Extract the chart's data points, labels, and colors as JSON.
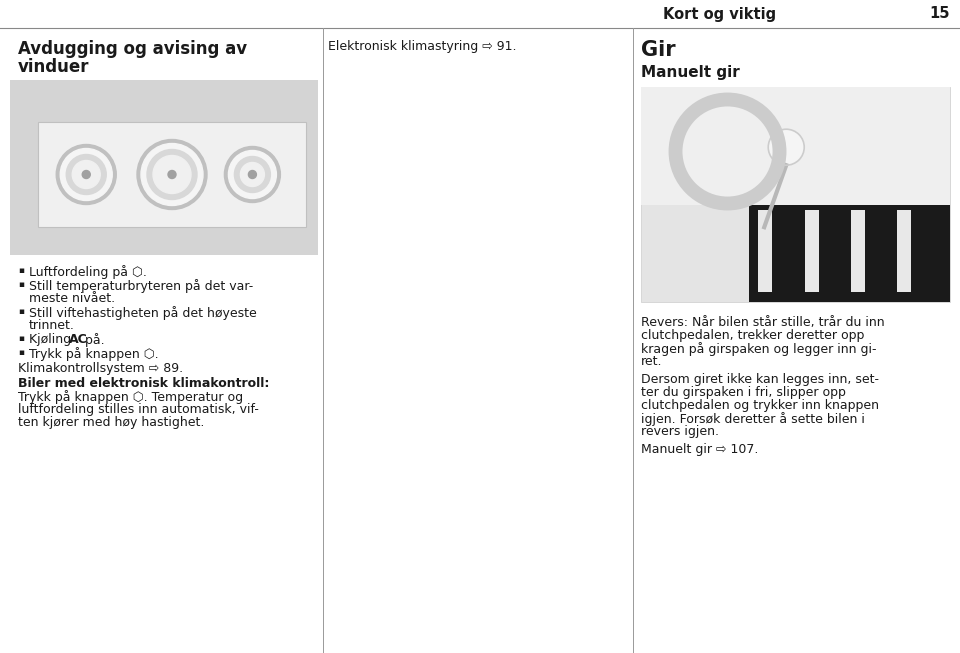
{
  "bg_color": "#ffffff",
  "header_text": "Kort og viktig",
  "page_number": "15",
  "header_line_color": "#888888",
  "col1_header": "Avdugging og avising av\nvinduer",
  "col2_header": "Elektronisk klimastyring ⇨ 91.",
  "col3_header": "Gir",
  "col3_subheader": "Manuelt gir",
  "col1_bullets": [
    "Luftfordeling på ⬡.",
    "Still temperaturbryteren på det var-\nmeste nivået.",
    "Still viftehastigheten på det høyeste\ntrinnet.",
    "Kjøling AC på.",
    "Trykk på knappen ⬡."
  ],
  "col1_text_below": "Klimakontrollsystem ⇨ 89.",
  "col1_text_below2_bold": "Biler med elektronisk klimakontroll:",
  "col1_text_below2_normal": "\nTrykk på knappen ⬡. Temperatur og\nluftfordeling stilles inn automatisk, vif-\nten kjører med høy hastighet.",
  "col3_text1": "Revers: Når bilen står stille, trår du inn\nclutchpedalen, trekker deretter opp\nkragen på girspaken og legger inn gi-\nret.",
  "col3_text2": "Dersom giret ikke kan legges inn, set-\nter du girspaken i fri, slipper opp\nclutchpedalen og trykker inn knappen\nigjen. Forsøk deretter å sette bilen i\nrevers igjen.",
  "col3_text3": "Manuelt gir ⇨ 107.",
  "divider_color": "#999999",
  "text_color": "#1a1a1a",
  "gray_light": "#e8e8e8",
  "gray_mid": "#d0d0d0",
  "gray_dark": "#b0b0b0"
}
